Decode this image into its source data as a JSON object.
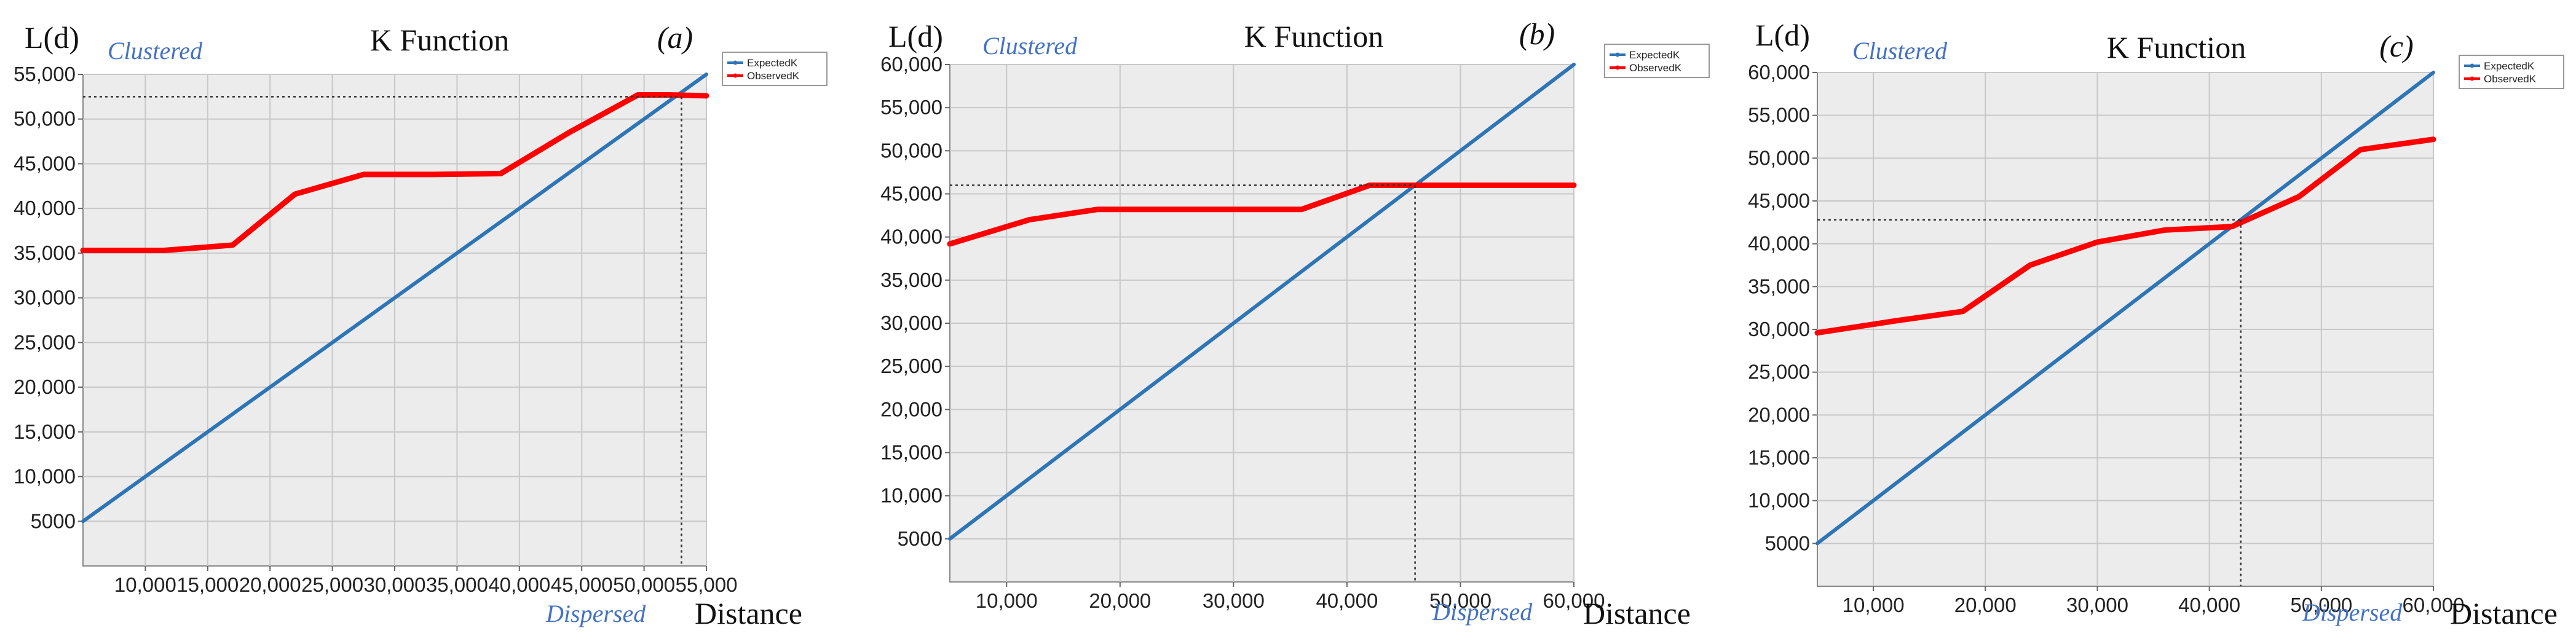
{
  "chart_data": [
    {
      "type": "line",
      "panel": "(a)",
      "title": "K Function",
      "ylabel": "L(d)",
      "xlabel": "Distance",
      "annotation_top": "Clustered",
      "annotation_bottom": "Dispersed",
      "xlim": [
        5000,
        55000
      ],
      "ylim": [
        0,
        55000
      ],
      "xticks": [
        10000,
        15000,
        20000,
        25000,
        30000,
        35000,
        40000,
        45000,
        50000,
        55000
      ],
      "xtick_labels": [
        "10,000",
        "15,000",
        "20,000",
        "25,000",
        "30,000",
        "35,000",
        "40,000",
        "45,000",
        "50,000",
        "55,000"
      ],
      "yticks": [
        5000,
        10000,
        15000,
        20000,
        25000,
        30000,
        35000,
        40000,
        45000,
        50000,
        55000
      ],
      "ytick_labels": [
        "5000",
        "10,000",
        "15,000",
        "20,000",
        "25,000",
        "30,000",
        "35,000",
        "40,000",
        "45,000",
        "50,000",
        "55,000"
      ],
      "legend": [
        "ExpectedK",
        "ObservedK"
      ],
      "legend_position": "outside top-right",
      "grid": true,
      "crossing": {
        "x": 53000,
        "y": 52500
      },
      "series": [
        {
          "name": "ExpectedK",
          "color": "#2e75b6",
          "points": [
            [
              5000,
              5000
            ],
            [
              55000,
              55000
            ]
          ]
        },
        {
          "name": "ObservedK",
          "color": "#ff0000",
          "points": [
            [
              5000,
              35300
            ],
            [
              11500,
              35300
            ],
            [
              17000,
              35900
            ],
            [
              22000,
              41600
            ],
            [
              27500,
              43800
            ],
            [
              33000,
              43800
            ],
            [
              38500,
              43900
            ],
            [
              44000,
              48500
            ],
            [
              49500,
              52700
            ],
            [
              52000,
              52700
            ],
            [
              55000,
              52600
            ]
          ]
        }
      ]
    },
    {
      "type": "line",
      "panel": "(b)",
      "title": "K Function",
      "ylabel": "L(d)",
      "xlabel": "Distance",
      "annotation_top": "Clustered",
      "annotation_bottom": "Dispersed",
      "xlim": [
        5000,
        60000
      ],
      "ylim": [
        0,
        60000
      ],
      "xticks": [
        10000,
        20000,
        30000,
        40000,
        50000,
        60000
      ],
      "xtick_labels": [
        "10,000",
        "20,000",
        "30,000",
        "40,000",
        "50,000",
        "60,000"
      ],
      "yticks": [
        5000,
        10000,
        15000,
        20000,
        25000,
        30000,
        35000,
        40000,
        45000,
        50000,
        55000,
        60000
      ],
      "ytick_labels": [
        "5000",
        "10,000",
        "15,000",
        "20,000",
        "25,000",
        "30,000",
        "35,000",
        "40,000",
        "45,000",
        "50,000",
        "55,000",
        "60,000"
      ],
      "legend": [
        "ExpectedK",
        "ObservedK"
      ],
      "legend_position": "outside top-right",
      "grid": true,
      "crossing": {
        "x": 46000,
        "y": 46000
      },
      "series": [
        {
          "name": "ExpectedK",
          "color": "#2e75b6",
          "points": [
            [
              5000,
              5000
            ],
            [
              60000,
              60000
            ]
          ]
        },
        {
          "name": "ObservedK",
          "color": "#ff0000",
          "points": [
            [
              5000,
              39200
            ],
            [
              12000,
              42000
            ],
            [
              18000,
              43200
            ],
            [
              24000,
              43200
            ],
            [
              30000,
              43200
            ],
            [
              36000,
              43200
            ],
            [
              42000,
              46000
            ],
            [
              48000,
              46000
            ],
            [
              54000,
              46000
            ],
            [
              60000,
              46000
            ]
          ]
        }
      ]
    },
    {
      "type": "line",
      "panel": "(c)",
      "title": "K Function",
      "ylabel": "L(d)",
      "xlabel": "Distance",
      "annotation_top": "Clustered",
      "annotation_bottom": "Dispersed",
      "xlim": [
        5000,
        60000
      ],
      "ylim": [
        0,
        60000
      ],
      "xticks": [
        10000,
        20000,
        30000,
        40000,
        50000,
        60000
      ],
      "xtick_labels": [
        "10,000",
        "20,000",
        "30,000",
        "40,000",
        "50,000",
        "60,000"
      ],
      "yticks": [
        5000,
        10000,
        15000,
        20000,
        25000,
        30000,
        35000,
        40000,
        45000,
        50000,
        55000,
        60000
      ],
      "ytick_labels": [
        "5000",
        "10,000",
        "15,000",
        "20,000",
        "25,000",
        "30,000",
        "35,000",
        "40,000",
        "45,000",
        "50,000",
        "55,000",
        "60,000"
      ],
      "legend": [
        "ExpectedK",
        "ObservedK"
      ],
      "legend_position": "outside top-right",
      "grid": true,
      "crossing": {
        "x": 42800,
        "y": 42800
      },
      "series": [
        {
          "name": "ExpectedK",
          "color": "#2e75b6",
          "points": [
            [
              5000,
              5000
            ],
            [
              60000,
              60000
            ]
          ]
        },
        {
          "name": "ObservedK",
          "color": "#ff0000",
          "points": [
            [
              5000,
              29600
            ],
            [
              12000,
              31000
            ],
            [
              18000,
              32100
            ],
            [
              24000,
              37500
            ],
            [
              30000,
              40200
            ],
            [
              36000,
              41600
            ],
            [
              42000,
              42000
            ],
            [
              48000,
              45500
            ],
            [
              53500,
              51000
            ],
            [
              60000,
              52200
            ]
          ]
        }
      ]
    }
  ]
}
